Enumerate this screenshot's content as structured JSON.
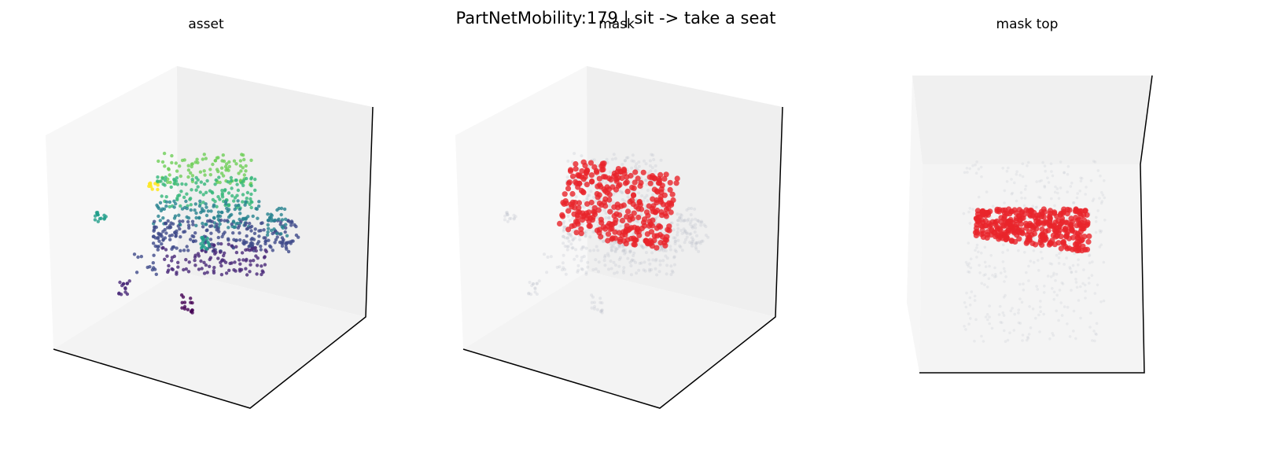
{
  "title": "PartNetMobility:179 | sit -> take a seat",
  "panels": [
    {
      "title": "asset"
    },
    {
      "title": "mask"
    },
    {
      "title": "mask top"
    }
  ]
}
